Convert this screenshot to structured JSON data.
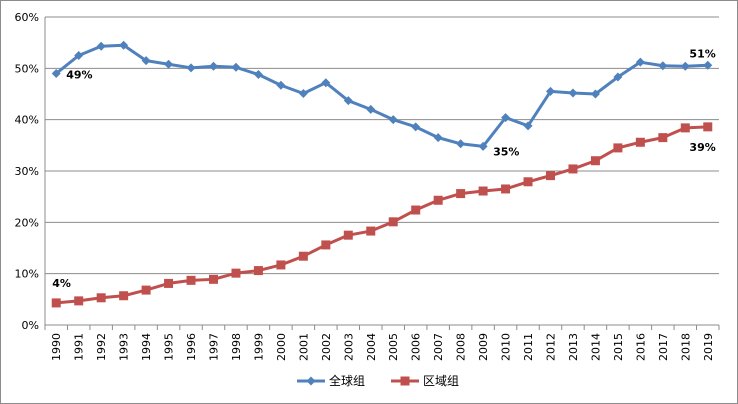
{
  "chart_data": {
    "type": "line",
    "title": "",
    "xlabel": "",
    "ylabel": "",
    "x": [
      "1990",
      "1991",
      "1992",
      "1993",
      "1994",
      "1995",
      "1996",
      "1997",
      "1998",
      "1999",
      "2000",
      "2001",
      "2002",
      "2003",
      "2004",
      "2005",
      "2006",
      "2007",
      "2008",
      "2009",
      "2010",
      "2011",
      "2012",
      "2013",
      "2014",
      "2015",
      "2016",
      "2017",
      "2018",
      "2019"
    ],
    "ylim": [
      0,
      60
    ],
    "y_ticks": [
      "0%",
      "10%",
      "20%",
      "30%",
      "40%",
      "50%",
      "60%"
    ],
    "y_tick_values": [
      0,
      10,
      20,
      30,
      40,
      50,
      60
    ],
    "grid": true,
    "legend_position": "bottom",
    "series": [
      {
        "name": "全球组",
        "color": "#4f81bd",
        "marker": "diamond",
        "values": [
          49,
          52.5,
          54.3,
          54.5,
          51.5,
          50.8,
          50.1,
          50.4,
          50.2,
          48.8,
          46.7,
          45.1,
          47.2,
          43.7,
          42,
          40,
          38.6,
          36.5,
          35.3,
          34.8,
          40.4,
          38.8,
          45.5,
          45.2,
          45,
          48.3,
          51.2,
          50.5,
          50.4,
          50.6
        ]
      },
      {
        "name": "区域组",
        "color": "#c0504d",
        "marker": "square",
        "values": [
          4.3,
          4.7,
          5.3,
          5.7,
          6.8,
          8.1,
          8.7,
          8.9,
          10.1,
          10.6,
          11.7,
          13.4,
          15.6,
          17.5,
          18.3,
          20.1,
          22.4,
          24.3,
          25.6,
          26.1,
          26.5,
          27.9,
          29.1,
          30.4,
          32,
          34.5,
          35.6,
          36.5,
          38.4,
          38.6
        ]
      }
    ],
    "annotations": [
      {
        "series": 0,
        "index": 0,
        "text": "49%"
      },
      {
        "series": 0,
        "index": 19,
        "text": "35%"
      },
      {
        "series": 0,
        "index": 29,
        "text": "51%"
      },
      {
        "series": 1,
        "index": 0,
        "text": "4%"
      },
      {
        "series": 1,
        "index": 29,
        "text": "39%"
      }
    ]
  }
}
